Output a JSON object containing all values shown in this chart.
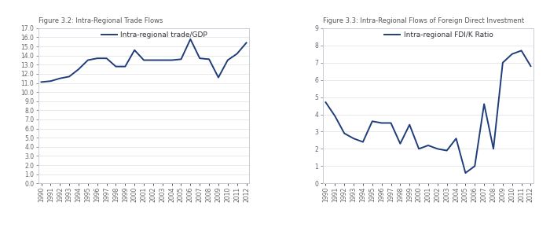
{
  "title1": "Figure 3.2: Intra-Regional Trade Flows",
  "title2": "Figure 3.3: Intra-Regional Flows of Foreign Direct Investment",
  "years": [
    1990,
    1991,
    1992,
    1993,
    1994,
    1995,
    1996,
    1997,
    1998,
    1999,
    2000,
    2001,
    2002,
    2003,
    2004,
    2005,
    2006,
    2007,
    2008,
    2009,
    2010,
    2011,
    2012
  ],
  "trade_gdp": [
    11.1,
    11.2,
    11.5,
    11.7,
    12.5,
    13.5,
    13.7,
    13.7,
    12.8,
    12.8,
    14.6,
    13.5,
    13.5,
    13.5,
    13.5,
    13.6,
    15.8,
    13.7,
    13.6,
    11.6,
    13.5,
    14.2,
    15.4
  ],
  "fdi_ratio": [
    4.7,
    3.9,
    2.9,
    2.6,
    2.4,
    3.6,
    3.5,
    3.5,
    2.3,
    3.4,
    2.0,
    2.2,
    2.0,
    1.9,
    2.6,
    0.6,
    1.0,
    4.6,
    2.0,
    7.0,
    7.5,
    7.7,
    6.8
  ],
  "line_color": "#1f3d7a",
  "legend_label1": "Intra-regional trade/GDP",
  "legend_label2": "Intra-regional FDI/K Ratio",
  "ylim1": [
    0.0,
    17.0
  ],
  "ylim2": [
    0,
    9
  ],
  "yticks1": [
    0.0,
    1.0,
    2.0,
    3.0,
    4.0,
    5.0,
    6.0,
    7.0,
    8.0,
    9.0,
    10.0,
    11.0,
    12.0,
    13.0,
    14.0,
    15.0,
    16.0,
    17.0
  ],
  "yticks2": [
    0,
    1,
    2,
    3,
    4,
    5,
    6,
    7,
    8,
    9
  ],
  "background_color": "#ffffff",
  "plot_bg": "#ffffff",
  "border_color": "#c8ccd8",
  "grid_color": "#e0e0e0",
  "tick_label_color": "#666666",
  "title_color": "#555555",
  "title_fontsize": 6.0,
  "tick_fontsize": 5.5,
  "legend_fontsize": 6.5
}
